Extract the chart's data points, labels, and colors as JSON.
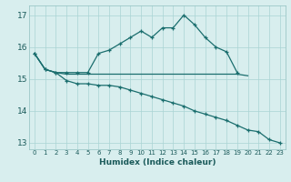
{
  "background_color": "#d8eeee",
  "grid_color": "#aad4d4",
  "line_color": "#1a6e6e",
  "xlabel": "Humidex (Indice chaleur)",
  "xlim": [
    -0.5,
    23.5
  ],
  "ylim": [
    12.8,
    17.3
  ],
  "yticks": [
    13,
    14,
    15,
    16,
    17
  ],
  "xticks": [
    0,
    1,
    2,
    3,
    4,
    5,
    6,
    7,
    8,
    9,
    10,
    11,
    12,
    13,
    14,
    15,
    16,
    17,
    18,
    19,
    20,
    21,
    22,
    23
  ],
  "series": [
    {
      "x": [
        0,
        1,
        2,
        3,
        4,
        5,
        6,
        7,
        8,
        9,
        10,
        11,
        12,
        13,
        14,
        15,
        16,
        17,
        18,
        19
      ],
      "y": [
        15.8,
        15.3,
        15.2,
        15.2,
        15.2,
        15.2,
        15.8,
        15.9,
        16.1,
        16.3,
        16.5,
        16.3,
        16.6,
        16.6,
        17.0,
        16.7,
        16.3,
        16.0,
        15.85,
        15.2
      ],
      "marker": "+"
    },
    {
      "x": [
        0,
        1,
        2,
        3,
        4,
        5,
        6,
        7,
        8,
        9,
        10,
        11,
        12,
        13,
        14,
        15,
        16,
        17,
        18,
        19,
        20
      ],
      "y": [
        15.8,
        15.3,
        15.2,
        15.15,
        15.15,
        15.15,
        15.15,
        15.15,
        15.15,
        15.15,
        15.15,
        15.15,
        15.15,
        15.15,
        15.15,
        15.15,
        15.15,
        15.15,
        15.15,
        15.15,
        15.1
      ],
      "marker": null
    },
    {
      "x": [
        0,
        1,
        2,
        3,
        4,
        5,
        6,
        7,
        8,
        9,
        10,
        11,
        12,
        13,
        14,
        15,
        16,
        17,
        18,
        19,
        20,
        21,
        22,
        23
      ],
      "y": [
        15.8,
        15.3,
        15.2,
        14.95,
        14.85,
        14.85,
        14.8,
        14.8,
        14.75,
        14.65,
        14.55,
        14.45,
        14.35,
        14.25,
        14.15,
        14.0,
        13.9,
        13.8,
        13.7,
        13.55,
        13.4,
        13.35,
        13.1,
        13.0
      ],
      "marker": "+"
    }
  ]
}
